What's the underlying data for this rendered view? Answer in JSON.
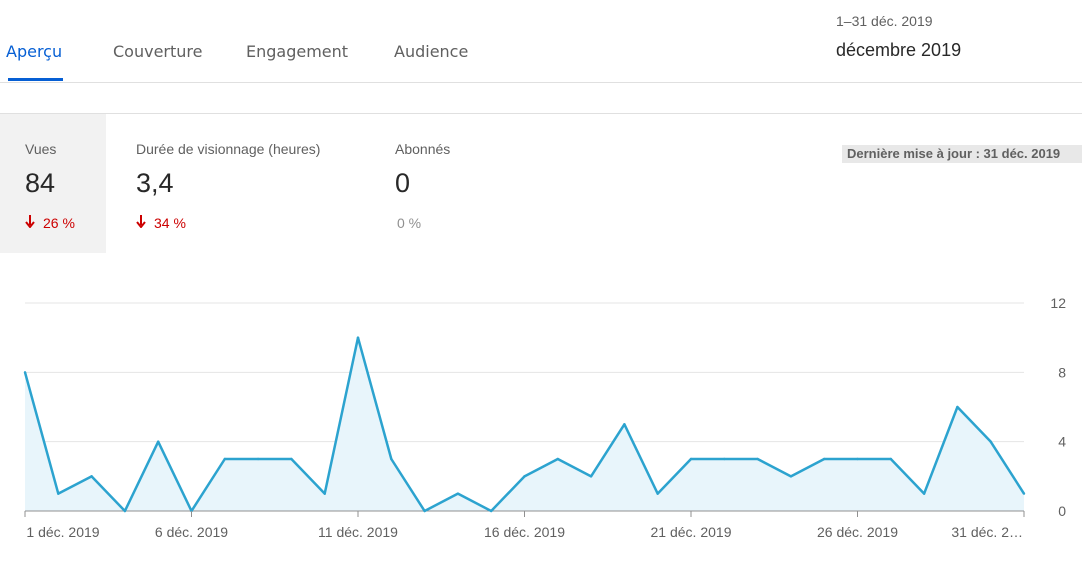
{
  "tabs": [
    {
      "label": "Aperçu",
      "active": true
    },
    {
      "label": "Couverture",
      "active": false
    },
    {
      "label": "Engagement",
      "active": false
    },
    {
      "label": "Audience",
      "active": false
    }
  ],
  "date_picker": {
    "range": "1–31 déc. 2019",
    "period": "décembre 2019"
  },
  "metrics": [
    {
      "label": "Vues",
      "value": "84",
      "delta": "26 %",
      "direction": "down"
    },
    {
      "label": "Durée de visionnage (heures)",
      "value": "3,4",
      "delta": "34 %",
      "direction": "down"
    },
    {
      "label": "Abonnés",
      "value": "0",
      "delta": "0 %",
      "direction": "neutral"
    }
  ],
  "last_update": "Dernière mise à jour : 31 déc. 2019",
  "chart_data": {
    "type": "area",
    "x": [
      "1 déc. 2019",
      "2",
      "3",
      "4",
      "5",
      "6 déc. 2019",
      "7",
      "8",
      "9",
      "10",
      "11 déc. 2019",
      "12",
      "13",
      "14",
      "15",
      "16 déc. 2019",
      "17",
      "18",
      "19",
      "20",
      "21 déc. 2019",
      "22",
      "23",
      "24",
      "25",
      "26 déc. 2019",
      "27",
      "28",
      "29",
      "30",
      "31 déc. 2019"
    ],
    "x_tick_labels": [
      "1 déc. 2019",
      "6 déc. 2019",
      "11 déc. 2019",
      "16 déc. 2019",
      "21 déc. 2019",
      "26 déc. 2019",
      "31 déc. 2…"
    ],
    "series": [
      {
        "values": [
          8,
          1,
          2,
          0,
          4,
          0,
          3,
          3,
          3,
          1,
          10,
          3,
          0,
          1,
          0,
          2,
          3,
          2,
          5,
          1,
          3,
          3,
          3,
          2,
          3,
          3,
          3,
          1,
          6,
          4,
          1
        ]
      }
    ],
    "y_ticks": [
      "0",
      "4",
      "8",
      "12"
    ],
    "ylim": [
      0,
      12
    ],
    "grid": true,
    "colors": {
      "line": "#2ca3cf",
      "fill": "#e8f5fb",
      "grid": "#e5e5e5",
      "axis": "#909090"
    }
  }
}
